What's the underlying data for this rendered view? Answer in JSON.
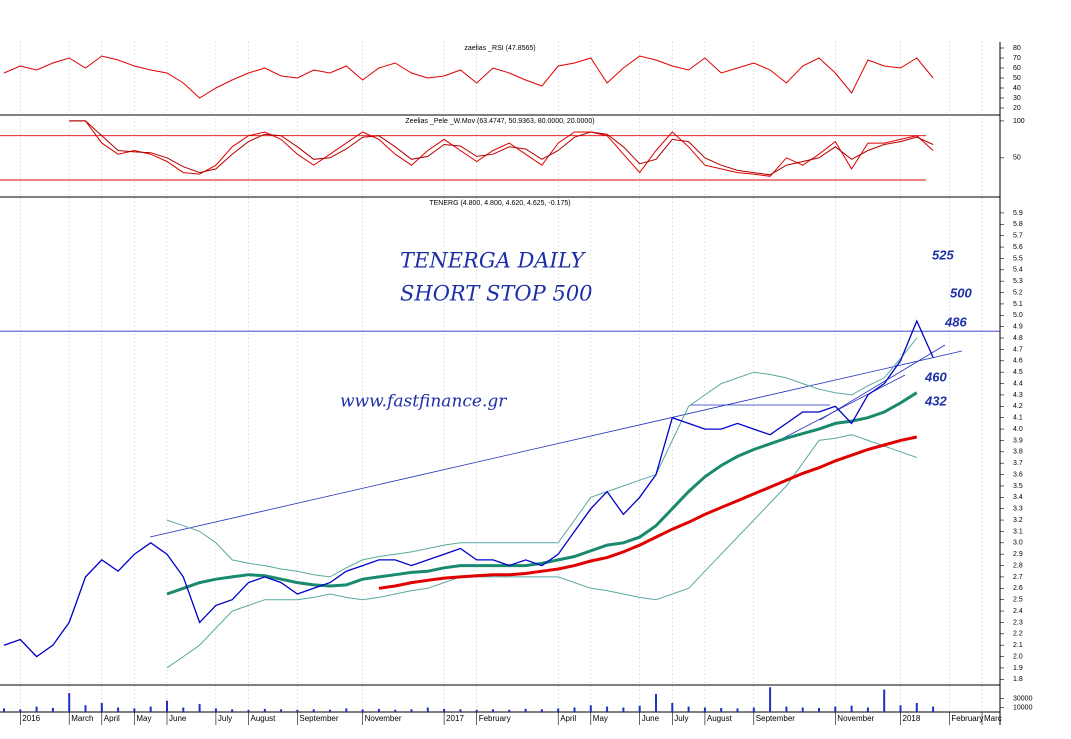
{
  "chart_data": [
    {
      "type": "line",
      "title": "zaelias _RSI (47.8565)",
      "ylim": [
        13,
        86
      ],
      "yticks": [
        20,
        30,
        40,
        50,
        60,
        70,
        80
      ],
      "series": [
        {
          "color": "#e00000",
          "line_width": 1,
          "values": [
            55,
            62,
            58,
            65,
            70,
            60,
            72,
            68,
            62,
            58,
            55,
            45,
            30,
            40,
            48,
            55,
            60,
            52,
            50,
            58,
            55,
            62,
            48,
            60,
            65,
            55,
            50,
            52,
            58,
            45,
            60,
            55,
            48,
            42,
            62,
            65,
            70,
            45,
            60,
            72,
            68,
            62,
            58,
            70,
            55,
            60,
            65,
            58,
            45,
            62,
            70,
            55,
            35,
            68,
            62,
            60,
            70,
            50,
            null,
            null,
            null,
            null
          ]
        }
      ]
    },
    {
      "type": "line",
      "title": "Zeelias _Pele _W.Mov (63.4747, 50.9363, 80.0000, 20.0000)",
      "ylim": [
        -3,
        108
      ],
      "yticks": [
        50,
        100
      ],
      "levels": [
        80,
        20
      ],
      "level_color": "#e00000",
      "series": [
        {
          "color": "#e00000",
          "line_width": 1,
          "values": [
            null,
            null,
            null,
            null,
            100,
            100,
            70,
            55,
            60,
            55,
            45,
            30,
            28,
            40,
            65,
            80,
            85,
            75,
            55,
            40,
            55,
            70,
            85,
            75,
            55,
            40,
            60,
            75,
            60,
            45,
            60,
            70,
            55,
            40,
            70,
            85,
            85,
            80,
            55,
            30,
            60,
            85,
            65,
            40,
            35,
            30,
            28,
            25,
            50,
            40,
            55,
            72,
            35,
            70,
            70,
            75,
            80,
            60,
            null,
            null,
            null,
            null
          ]
        },
        {
          "color": "#b00000",
          "line_width": 1,
          "values": [
            null,
            null,
            null,
            null,
            100,
            100,
            80,
            60,
            58,
            57,
            50,
            38,
            30,
            35,
            55,
            72,
            82,
            80,
            65,
            48,
            50,
            62,
            78,
            80,
            65,
            48,
            52,
            68,
            66,
            52,
            55,
            65,
            62,
            48,
            60,
            78,
            85,
            82,
            65,
            42,
            48,
            75,
            72,
            50,
            40,
            33,
            30,
            27,
            40,
            45,
            50,
            65,
            48,
            60,
            68,
            72,
            78,
            68,
            null,
            null,
            null,
            null
          ]
        }
      ]
    },
    {
      "type": "line",
      "title": "TENERG (4.800, 4.800, 4.620, 4.625, -0.175)",
      "ylim": [
        1.75,
        6.04
      ],
      "yticks": [
        1.8,
        1.9,
        {
          "value": 2,
          "label": "2.0"
        },
        2.1,
        2.2,
        2.3,
        2.4,
        2.5,
        2.6,
        2.7,
        2.8,
        2.9,
        {
          "value": 3,
          "label": "3.0"
        },
        3.1,
        3.2,
        3.3,
        3.4,
        3.5,
        3.6,
        3.7,
        3.8,
        3.9,
        {
          "value": 4,
          "label": "4.0"
        },
        4.1,
        4.2,
        4.3,
        4.4,
        4.5,
        4.6,
        4.7,
        4.8,
        4.9,
        {
          "value": 5,
          "label": "5.0"
        },
        5.1,
        5.2,
        5.3,
        5.4,
        5.5,
        5.6,
        5.7,
        5.8,
        5.9
      ],
      "levels": [
        4.86
      ],
      "level_color": "#2030c0",
      "series": [
        {
          "color": "#5aa9a0",
          "line_width": 1,
          "values": [
            null,
            null,
            null,
            null,
            null,
            null,
            null,
            null,
            null,
            null,
            3.2,
            3.15,
            3.1,
            3.0,
            2.85,
            2.82,
            2.8,
            2.77,
            2.75,
            2.72,
            2.7,
            2.78,
            2.85,
            2.88,
            2.9,
            2.92,
            2.95,
            2.98,
            3.0,
            3.0,
            3.0,
            3.0,
            3.0,
            3.0,
            3.0,
            3.2,
            3.4,
            3.45,
            3.5,
            3.55,
            3.6,
            3.9,
            4.2,
            4.3,
            4.4,
            4.45,
            4.5,
            4.48,
            4.45,
            4.4,
            4.35,
            4.32,
            4.3,
            4.38,
            4.45,
            4.62,
            4.8,
            null,
            null,
            null,
            null,
            null
          ]
        },
        {
          "color": "#5aa9a0",
          "line_width": 1,
          "values": [
            null,
            null,
            null,
            null,
            null,
            null,
            null,
            null,
            null,
            null,
            1.9,
            2.0,
            2.1,
            2.25,
            2.4,
            2.45,
            2.5,
            2.5,
            2.5,
            2.52,
            2.55,
            2.52,
            2.5,
            2.52,
            2.55,
            2.58,
            2.6,
            2.65,
            2.7,
            2.7,
            2.7,
            2.7,
            2.7,
            2.7,
            2.7,
            2.65,
            2.6,
            2.58,
            2.55,
            2.52,
            2.5,
            2.55,
            2.6,
            2.75,
            2.9,
            3.05,
            3.2,
            3.35,
            3.5,
            3.7,
            3.9,
            3.92,
            3.95,
            3.9,
            3.85,
            3.8,
            3.75,
            null,
            null,
            null,
            null,
            null
          ]
        },
        {
          "color": "#e00000",
          "line_width": 3,
          "values": [
            null,
            null,
            null,
            null,
            null,
            null,
            null,
            null,
            null,
            null,
            null,
            null,
            null,
            null,
            null,
            null,
            null,
            null,
            null,
            null,
            null,
            null,
            null,
            2.6,
            2.62,
            2.65,
            2.67,
            2.69,
            2.7,
            2.71,
            2.72,
            2.72,
            2.73,
            2.75,
            2.77,
            2.8,
            2.84,
            2.87,
            2.92,
            2.98,
            3.05,
            3.12,
            3.18,
            3.25,
            3.31,
            3.37,
            3.43,
            3.49,
            3.55,
            3.61,
            3.66,
            3.72,
            3.77,
            3.82,
            3.86,
            3.9,
            3.93,
            null,
            null,
            null,
            null,
            null
          ]
        },
        {
          "color": "#1a8a6e",
          "line_width": 3,
          "values": [
            null,
            null,
            null,
            null,
            null,
            null,
            null,
            null,
            null,
            null,
            2.55,
            2.6,
            2.65,
            2.68,
            2.7,
            2.72,
            2.71,
            2.68,
            2.65,
            2.63,
            2.62,
            2.63,
            2.68,
            2.7,
            2.72,
            2.74,
            2.75,
            2.78,
            2.8,
            2.8,
            2.8,
            2.8,
            2.8,
            2.82,
            2.85,
            2.88,
            2.93,
            2.98,
            3.0,
            3.05,
            3.15,
            3.3,
            3.45,
            3.58,
            3.68,
            3.76,
            3.82,
            3.87,
            3.92,
            3.96,
            4.0,
            4.05,
            4.07,
            4.1,
            4.15,
            4.23,
            4.32,
            null,
            null,
            null,
            null,
            null
          ]
        },
        {
          "color": "#0000cc",
          "line_width": 1.3,
          "values": [
            2.1,
            2.15,
            2.0,
            2.1,
            2.3,
            2.7,
            2.85,
            2.75,
            2.9,
            3.0,
            2.9,
            2.7,
            2.3,
            2.45,
            2.5,
            2.65,
            2.7,
            2.65,
            2.55,
            2.6,
            2.65,
            2.75,
            2.8,
            2.85,
            2.85,
            2.8,
            2.85,
            2.9,
            2.95,
            2.85,
            2.85,
            2.8,
            2.85,
            2.8,
            2.9,
            3.1,
            3.3,
            3.45,
            3.25,
            3.4,
            3.6,
            4.1,
            4.05,
            4.0,
            4.0,
            4.05,
            4.0,
            3.95,
            4.05,
            4.15,
            4.15,
            4.2,
            4.05,
            4.3,
            4.4,
            4.6,
            4.95,
            4.63,
            null,
            null,
            null,
            null
          ]
        }
      ]
    },
    {
      "type": "bar",
      "ylim": [
        0,
        60000
      ],
      "yticks": [
        10000,
        30000
      ],
      "color": "#2030c0",
      "grid": true,
      "categories": [
        null,
        "2016",
        null,
        null,
        "March",
        null,
        "April",
        null,
        "May",
        null,
        "June",
        null,
        null,
        "July",
        null,
        "August",
        null,
        null,
        "September",
        null,
        null,
        null,
        "November",
        null,
        null,
        null,
        null,
        "2017",
        null,
        "February",
        null,
        null,
        null,
        null,
        "April",
        null,
        "May",
        null,
        null,
        "June",
        null,
        "July",
        null,
        "August",
        null,
        null,
        "September",
        null,
        null,
        null,
        null,
        "November",
        null,
        null,
        null,
        "2018",
        null,
        null,
        "February",
        null,
        "Marc",
        null
      ],
      "values": [
        8000,
        6000,
        12000,
        9000,
        42000,
        15000,
        20000,
        10000,
        8000,
        12000,
        25000,
        10000,
        18000,
        8000,
        6000,
        5000,
        7000,
        6000,
        5000,
        6000,
        5000,
        8000,
        6000,
        7000,
        5000,
        6000,
        10000,
        7000,
        6000,
        5000,
        6000,
        5000,
        7000,
        6000,
        8000,
        10000,
        15000,
        12000,
        10000,
        14000,
        40000,
        20000,
        12000,
        10000,
        9000,
        8000,
        10000,
        55000,
        12000,
        10000,
        9000,
        12000,
        14000,
        10000,
        50000,
        15000,
        20000,
        12000,
        null,
        null,
        null,
        null
      ]
    }
  ],
  "annotations": {
    "heading": [
      "TENERGA DAILY",
      "SHORT STOP 500"
    ],
    "site": "www.fastfinance.gr",
    "levels": [
      "525",
      "500",
      "486",
      "460",
      "432"
    ]
  }
}
